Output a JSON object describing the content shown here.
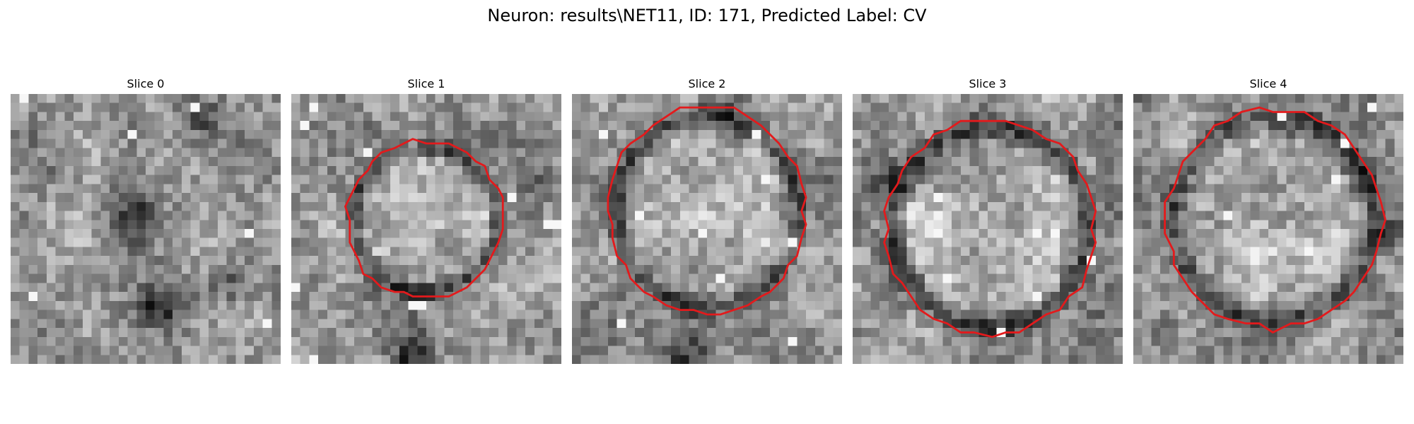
{
  "figure": {
    "title": "Neuron: results\\NET11, ID: 171, Predicted Label: CV"
  },
  "colors": {
    "background": "#ffffff",
    "contour": "#e31a1c",
    "image_colormap": "grayscale"
  },
  "panels": [
    {
      "title": "Slice 0",
      "has_contour": false
    },
    {
      "title": "Slice 1",
      "has_contour": true
    },
    {
      "title": "Slice 2",
      "has_contour": true
    },
    {
      "title": "Slice 3",
      "has_contour": true
    },
    {
      "title": "Slice 4",
      "has_contour": true
    }
  ]
}
